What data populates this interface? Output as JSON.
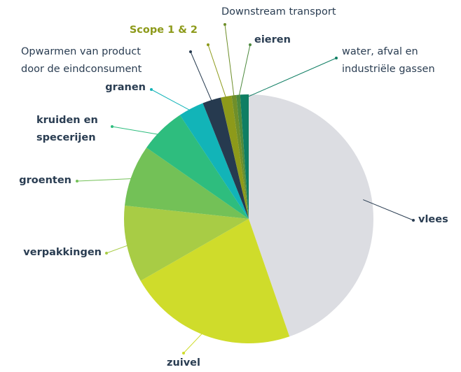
{
  "chart_data": {
    "type": "pie",
    "categories": [
      "vlees",
      "zuivel",
      "verpakkingen",
      "groenten",
      "kruiden en\nspecerijen",
      "granen",
      "Opwarmen van product\ndoor de eindconsument",
      "Scope 1 & 2",
      "Downstream transport",
      "eieren",
      "water, afval en\nindustriële gassen"
    ],
    "values": [
      44.7,
      22,
      10,
      8,
      6,
      3.3,
      2.4,
      1.4,
      0.6,
      0.5,
      1.1
    ],
    "colors": [
      "#dcdde2",
      "#cfdc2b",
      "#a8cc45",
      "#73c157",
      "#2ebd7e",
      "#12b4b8",
      "#263a4f",
      "#8d9a1a",
      "#6f8f2a",
      "#4d8a3e",
      "#0f7e63"
    ]
  }
}
